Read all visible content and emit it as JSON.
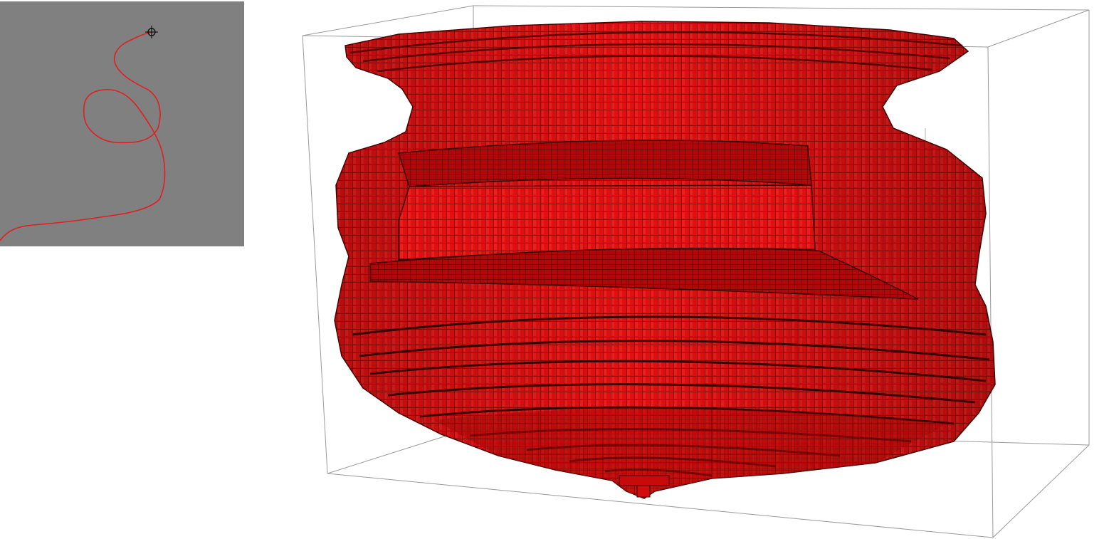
{
  "sketch_panel": {
    "background_color": "#808080",
    "stroke_color": "#e02020",
    "cursor_icon": "crosshair-target-icon"
  },
  "viewport_3d": {
    "object": "voxel-vase-model",
    "voxel_color": "#e01010",
    "voxel_edge_color": "#3a0000",
    "bounding_box_color": "#9a9a9a",
    "background_color": "#ffffff"
  }
}
